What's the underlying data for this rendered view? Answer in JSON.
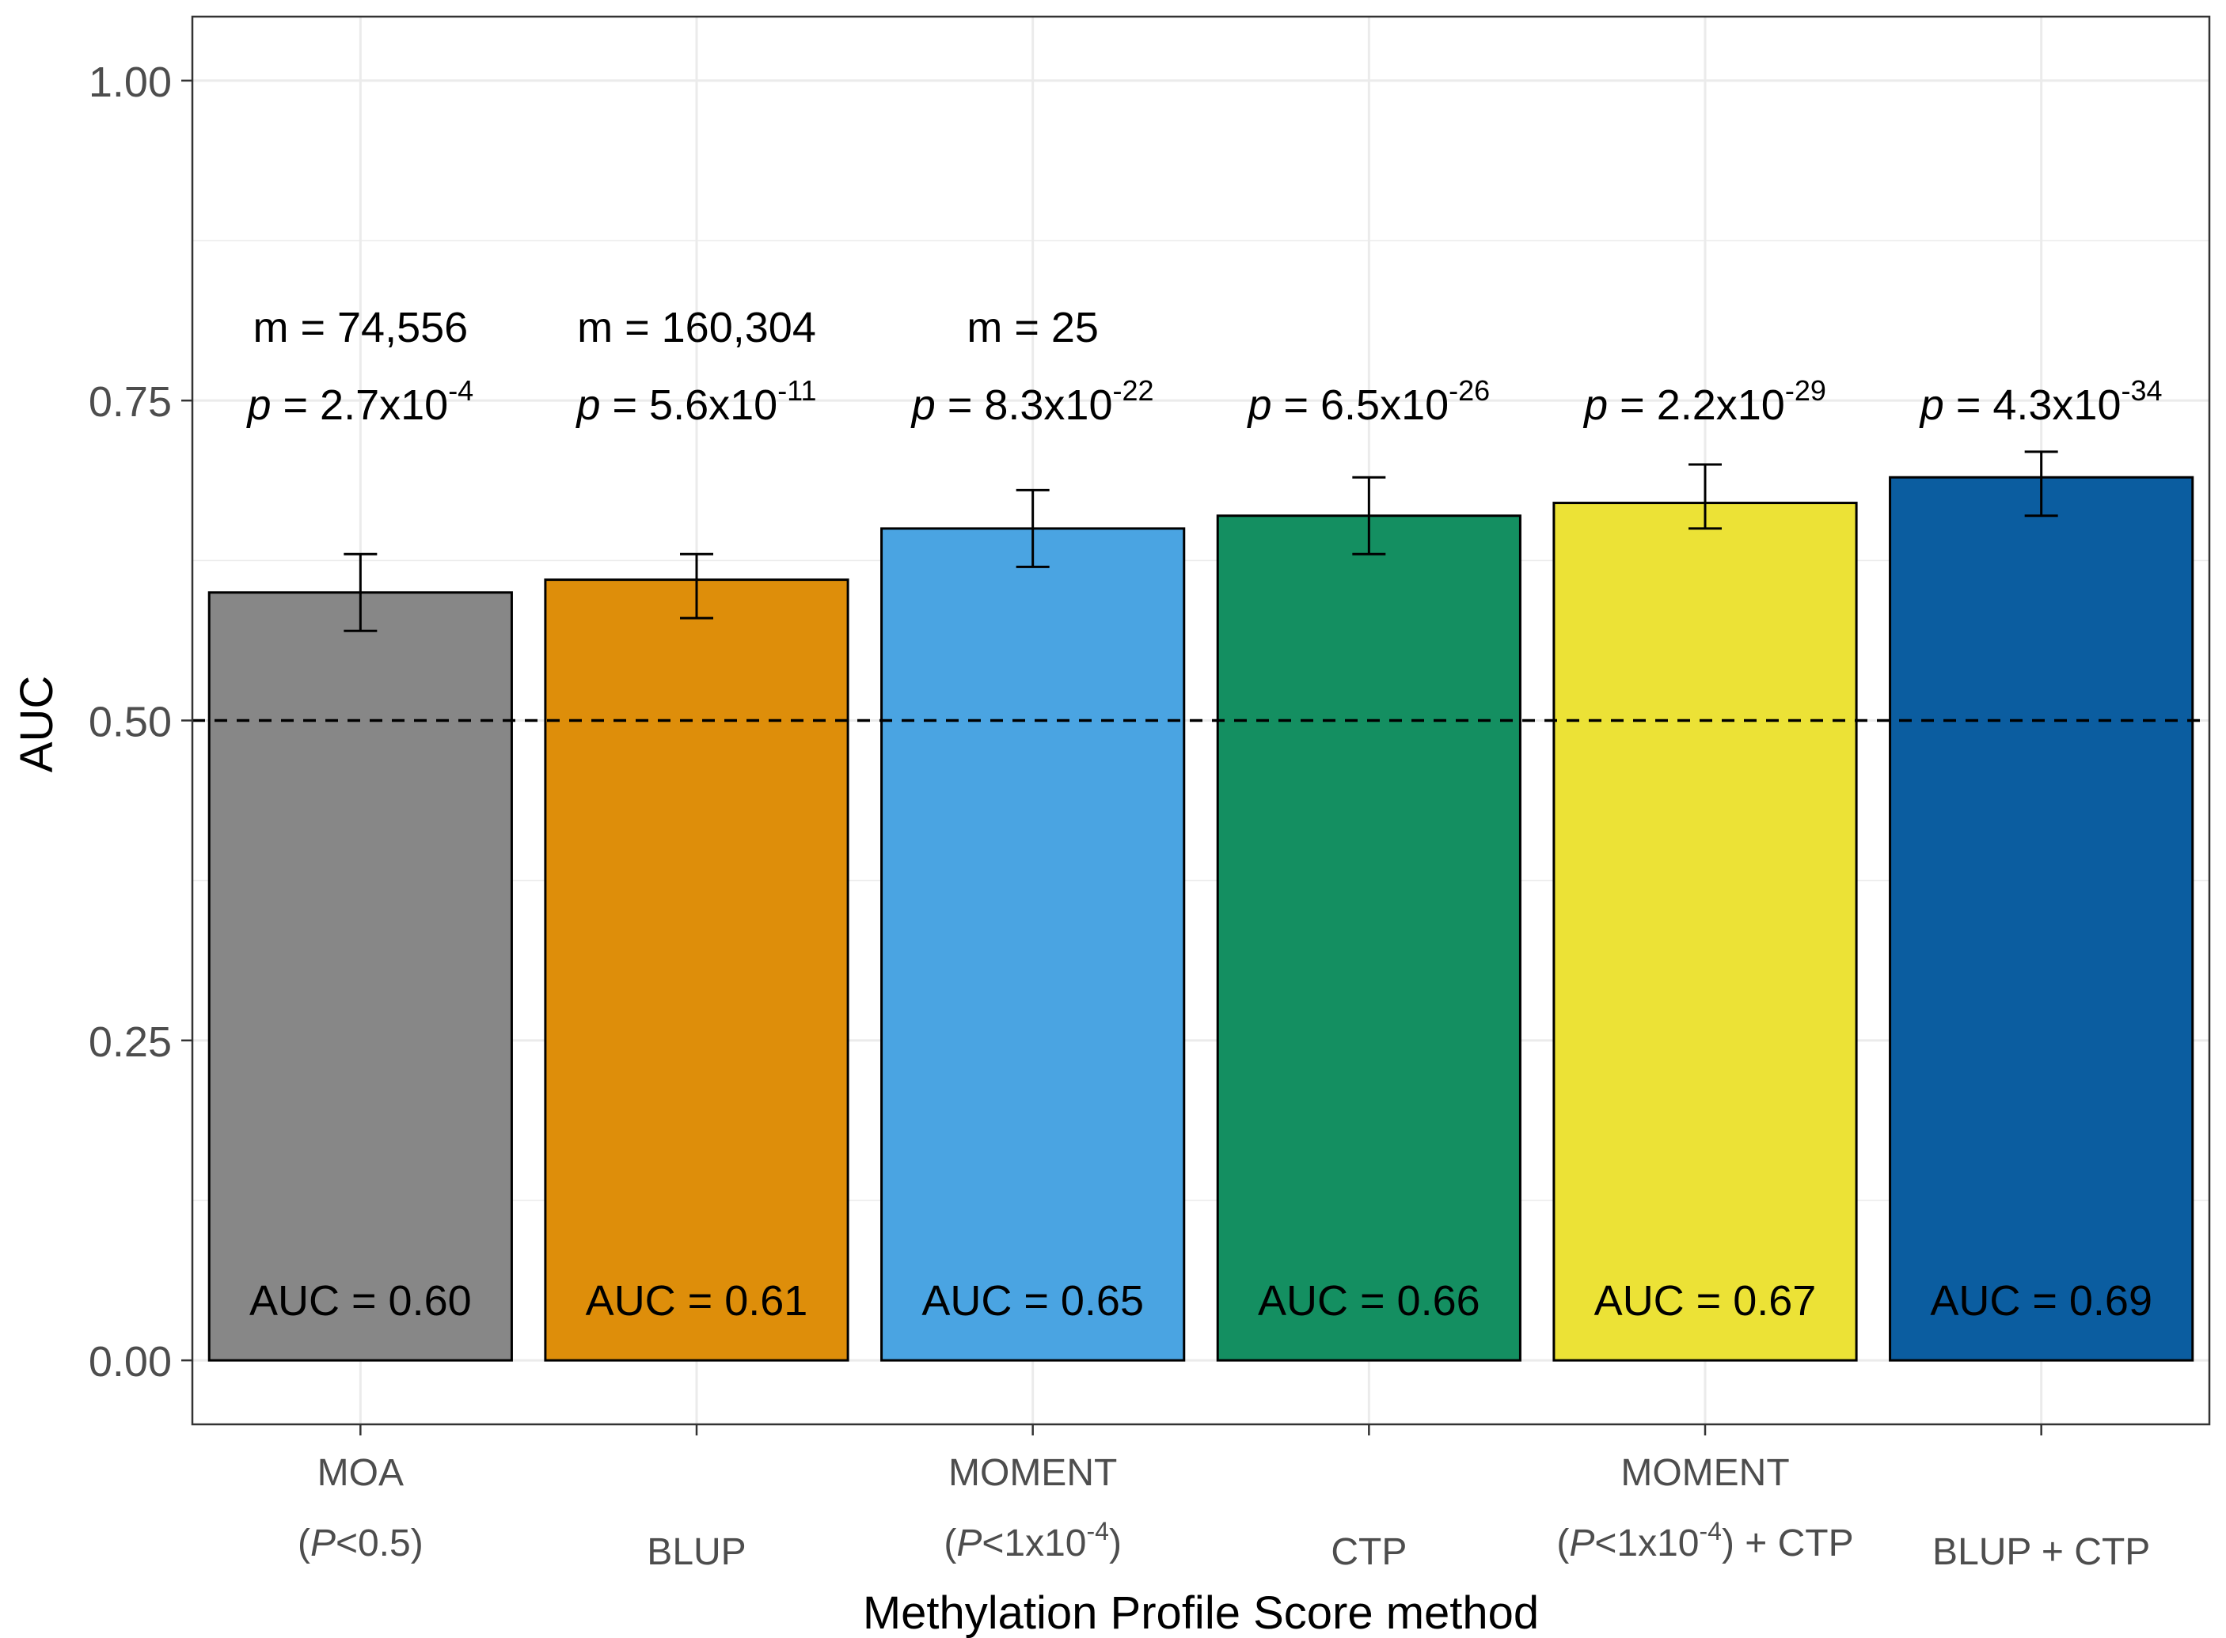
{
  "chart_data": {
    "type": "bar",
    "title": "",
    "xlabel": "Methylation Profile Score method",
    "ylabel": "AUC",
    "ylim": [
      -0.05,
      1.05
    ],
    "y_ticks": [
      "0.00",
      "0.25",
      "0.50",
      "0.75",
      "1.00"
    ],
    "y_tick_values": [
      0,
      0.25,
      0.5,
      0.75,
      1.0
    ],
    "grid": true,
    "reference_line": {
      "y": 0.5,
      "style": "dashed",
      "color": "#000000"
    },
    "categories": [
      {
        "line1": "MOA",
        "line2_pre": "(",
        "line2_it": "P",
        "line2_post": "<0.5)",
        "line2_sup": "",
        "line2_after": ""
      },
      {
        "line1": "",
        "line2_pre": "BLUP",
        "line2_it": "",
        "line2_post": "",
        "line2_sup": "",
        "line2_after": ""
      },
      {
        "line1": "MOMENT",
        "line2_pre": "(",
        "line2_it": "P",
        "line2_post": "<1x10",
        "line2_sup": "-4",
        "line2_after": ")"
      },
      {
        "line1": "",
        "line2_pre": "CTP",
        "line2_it": "",
        "line2_post": "",
        "line2_sup": "",
        "line2_after": ""
      },
      {
        "line1": "MOMENT",
        "line2_pre": "(",
        "line2_it": "P",
        "line2_post": "<1x10",
        "line2_sup": "-4",
        "line2_after": ") + CTP"
      },
      {
        "line1": "",
        "line2_pre": "BLUP + CTP",
        "line2_it": "",
        "line2_post": "",
        "line2_sup": "",
        "line2_after": ""
      }
    ],
    "values": [
      0.6,
      0.61,
      0.65,
      0.66,
      0.67,
      0.69
    ],
    "error_low": [
      0.57,
      0.58,
      0.62,
      0.63,
      0.65,
      0.66
    ],
    "error_high": [
      0.63,
      0.63,
      0.68,
      0.69,
      0.7,
      0.71
    ],
    "colors": [
      "#878787",
      "#DE8E0A",
      "#4AA4E2",
      "#148F61",
      "#ECE236",
      "#0B5DA0"
    ],
    "auc_labels": [
      "AUC = 0.60",
      "AUC = 0.61",
      "AUC = 0.65",
      "AUC = 0.66",
      "AUC = 0.67",
      "AUC = 0.69"
    ],
    "m_labels": [
      "m = 74,556",
      "m = 160,304",
      "m = 25",
      "",
      "",
      ""
    ],
    "p_labels": [
      {
        "it": "p",
        "base": " = 2.7x10",
        "sup": "-4"
      },
      {
        "it": "p",
        "base": " = 5.6x10",
        "sup": "-11"
      },
      {
        "it": "p",
        "base": " = 8.3x10",
        "sup": "-22"
      },
      {
        "it": "p",
        "base": " = 6.5x10",
        "sup": "-26"
      },
      {
        "it": "p",
        "base": " = 2.2x10",
        "sup": "-29"
      },
      {
        "it": "p",
        "base": " = 4.3x10",
        "sup": "-34"
      }
    ]
  }
}
